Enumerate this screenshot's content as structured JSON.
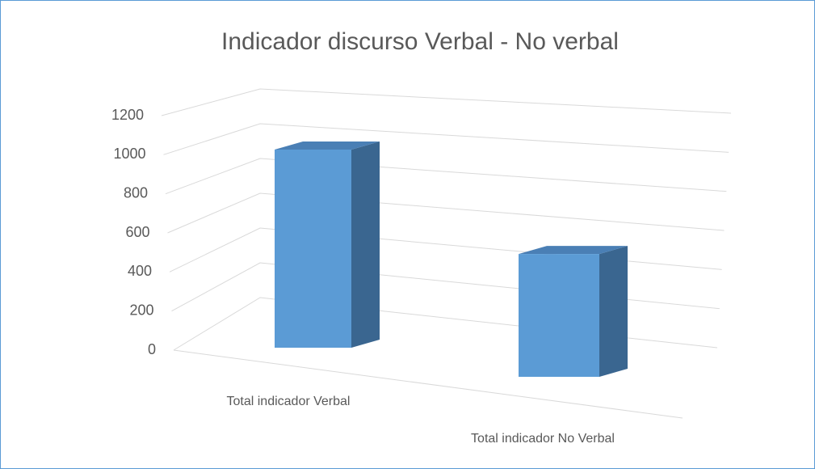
{
  "chart_data": {
    "type": "bar3d",
    "title": "Indicador discurso Verbal - No verbal",
    "categories": [
      "Total indicador Verbal",
      "Total indicador No Verbal"
    ],
    "values": [
      1000,
      620
    ],
    "color": "#5b9bd5",
    "ylim": [
      0,
      1200
    ],
    "yticks": [
      0,
      200,
      400,
      600,
      800,
      1000,
      1200
    ],
    "grid": true
  }
}
